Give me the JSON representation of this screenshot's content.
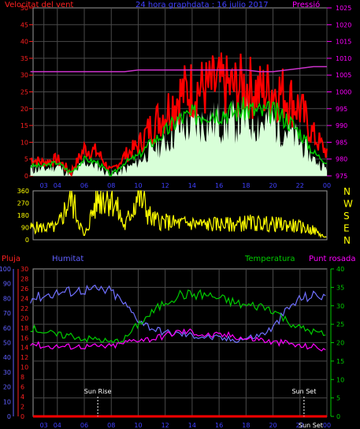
{
  "colors": {
    "wind_axis": "#ff2020",
    "pressure_axis": "#ff00ff",
    "title": "#4040ff",
    "grid": "#4a4a4a",
    "frame": "#9a9a9a",
    "wind_max": "#ff0000",
    "wind_avg": "#00cc00",
    "wind_gust_fill": "#d8ffd8",
    "pressure_line": "#cc33cc",
    "direction": "#ffff00",
    "rain_axis": "#ff2020",
    "humidity_axis": "#6060ff",
    "temperature_axis": "#00cc00",
    "dewpoint_axis": "#ff00ff",
    "humidity_line": "#7070ff",
    "temperature_line": "#00cc00",
    "dewpoint_line": "#ff00ff",
    "rain_line": "#ff0000",
    "sun_marker": "#ffffff"
  },
  "chart_data": [
    {
      "type": "line",
      "title": "24 hora graphdata : 16 julio 2017",
      "left_label": "Velocitat del vent",
      "right_label": "Pressió",
      "x_ticks": [
        "03",
        "04",
        "06",
        "08",
        "10",
        "12",
        "14",
        "16",
        "18",
        "20",
        "22",
        "00"
      ],
      "y_left_ticks": [
        "50",
        "45",
        "40",
        "35",
        "30",
        "25",
        "20",
        "15",
        "10",
        "5",
        "0"
      ],
      "y_left_range": [
        0,
        50
      ],
      "y_right_ticks": [
        "1025",
        "1020",
        "1015",
        "1010",
        "1005",
        "1000",
        "995",
        "990",
        "985",
        "980",
        "975"
      ],
      "y_right_range": [
        975,
        1025
      ],
      "grid": true,
      "hours": [
        2,
        3,
        4,
        5,
        6,
        7,
        8,
        9,
        10,
        11,
        12,
        13,
        14,
        15,
        16,
        17,
        18,
        19,
        20,
        21,
        22,
        23,
        24
      ],
      "series": [
        {
          "name": "max",
          "values": [
            5,
            4,
            5,
            1,
            8,
            7,
            1,
            6,
            9,
            15,
            19,
            24,
            26,
            26,
            27,
            26,
            27,
            25,
            26,
            24,
            20,
            12,
            7
          ]
        },
        {
          "name": "avg",
          "values": [
            3,
            3,
            4,
            1,
            5,
            4,
            0,
            4,
            6,
            10,
            13,
            17,
            18,
            19,
            19,
            19,
            20,
            19,
            19,
            17,
            13,
            7,
            4
          ]
        },
        {
          "name": "gust",
          "values": [
            2,
            2,
            3,
            0,
            4,
            3,
            0,
            2,
            4,
            8,
            10,
            14,
            15,
            16,
            16,
            16,
            17,
            16,
            16,
            14,
            10,
            5,
            2
          ]
        },
        {
          "name": "pressure",
          "values": [
            1006,
            1006,
            1006,
            1006,
            1006,
            1006,
            1006,
            1006,
            1006.5,
            1006.5,
            1006.5,
            1006.5,
            1006.5,
            1006.5,
            1006.5,
            1006.5,
            1006.5,
            1006,
            1006,
            1006.5,
            1007,
            1007.5,
            1007.5
          ]
        }
      ]
    },
    {
      "type": "line",
      "y_left_ticks": [
        "360",
        "270",
        "180",
        "90",
        "0"
      ],
      "y_left_range": [
        0,
        360
      ],
      "y_right_ticks": [
        "N",
        "W",
        "S",
        "E",
        "N"
      ],
      "hours": [
        2,
        3,
        4,
        5,
        6,
        7,
        8,
        9,
        10,
        11,
        12,
        13,
        14,
        15,
        16,
        17,
        18,
        19,
        20,
        21,
        22,
        23,
        24
      ],
      "series": [
        {
          "name": "direction",
          "values": [
            90,
            90,
            90,
            320,
            20,
            320,
            330,
            90,
            340,
            150,
            130,
            120,
            120,
            110,
            115,
            110,
            125,
            120,
            115,
            110,
            95,
            70,
            10
          ]
        }
      ]
    },
    {
      "type": "line",
      "left_labels": [
        "Pluja",
        "Humitat"
      ],
      "right_labels": [
        "Temperatura",
        "Punt rosada"
      ],
      "x_ticks": [
        "03",
        "04",
        "06",
        "08",
        "10",
        "12",
        "14",
        "16",
        "18",
        "20",
        "22",
        "00"
      ],
      "rain_ticks": [
        "30",
        "28",
        "26",
        "24",
        "22",
        "20",
        "18",
        "16",
        "14",
        "12",
        "10",
        "8",
        "6",
        "4",
        "2",
        "0"
      ],
      "rain_range": [
        0,
        30
      ],
      "humidity_ticks": [
        "100",
        "90",
        "80",
        "70",
        "60",
        "50",
        "40",
        "30",
        "20",
        "10",
        "0"
      ],
      "humidity_range": [
        0,
        100
      ],
      "temperature_ticks": [
        "40",
        "35",
        "30",
        "25",
        "20",
        "15",
        "10",
        "5",
        "0"
      ],
      "temperature_range": [
        0,
        40
      ],
      "annotations": [
        "Sun Rise",
        "Sun Set",
        "Sun Set"
      ],
      "grid": true,
      "hours": [
        2,
        3,
        4,
        5,
        6,
        7,
        8,
        9,
        10,
        11,
        12,
        13,
        14,
        15,
        16,
        17,
        18,
        19,
        20,
        21,
        22,
        23,
        24
      ],
      "series": [
        {
          "name": "Humitat",
          "values": [
            80,
            82,
            84,
            85,
            86,
            86,
            85,
            76,
            66,
            60,
            57,
            56,
            55,
            54,
            53,
            52,
            53,
            55,
            60,
            72,
            80,
            82,
            82
          ]
        },
        {
          "name": "Temperatura",
          "values": [
            24,
            23,
            22,
            22,
            21,
            21,
            20,
            21,
            25,
            28,
            31,
            33,
            33,
            33,
            32,
            31,
            30,
            30,
            29,
            26,
            24,
            23,
            22
          ]
        },
        {
          "name": "Punt rosada",
          "values": [
            20,
            19,
            19,
            19,
            19,
            19,
            19,
            20,
            21,
            21,
            22,
            23,
            23,
            22,
            22,
            22,
            21,
            21,
            20,
            20,
            19,
            19,
            18
          ]
        },
        {
          "name": "Pluja",
          "values": [
            0,
            0,
            0,
            0,
            0,
            0,
            0,
            0,
            0,
            0,
            0,
            0,
            0,
            0,
            0,
            0,
            0,
            0,
            0,
            0,
            0,
            0,
            0
          ]
        }
      ]
    }
  ]
}
